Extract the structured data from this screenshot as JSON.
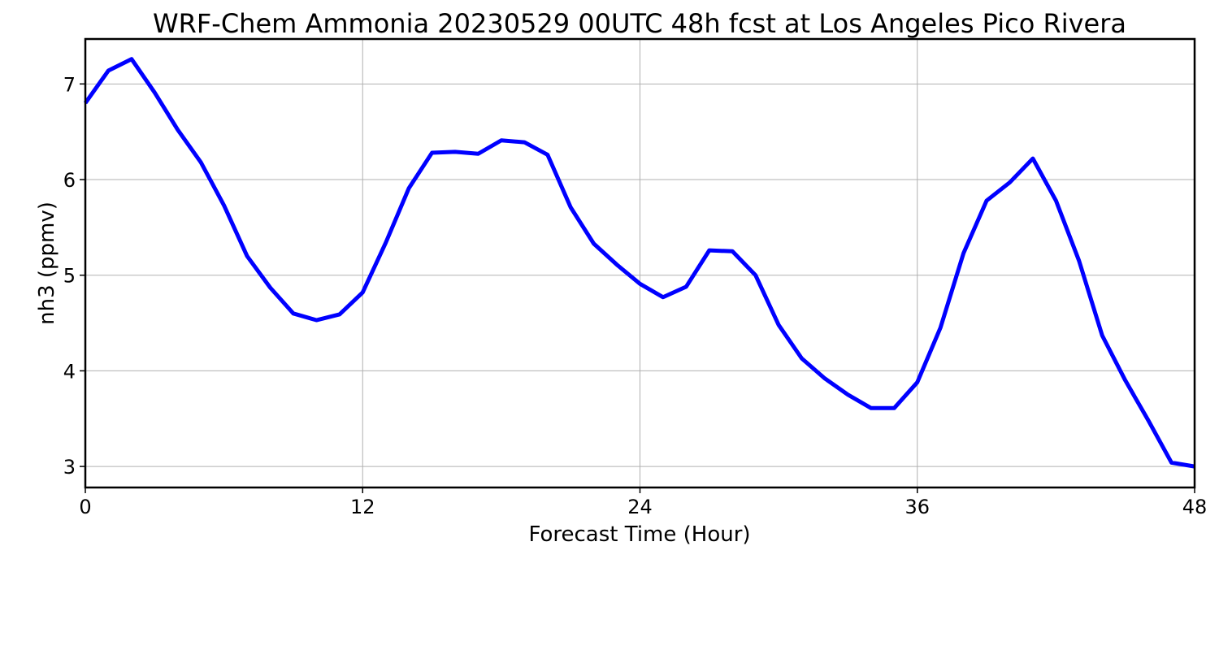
{
  "chart_data": {
    "type": "line",
    "title": "WRF-Chem Ammonia  20230529 00UTC 48h fcst at Los Angeles Pico Rivera",
    "xlabel": "Forecast Time (Hour)",
    "ylabel": "nh3  (ppmv)",
    "xlim": [
      0,
      48
    ],
    "ylim": [
      2.78,
      7.47
    ],
    "xticks": [
      0,
      12,
      24,
      36,
      48
    ],
    "yticks": [
      3,
      4,
      5,
      6,
      7
    ],
    "grid": true,
    "colors": {
      "line": "#0000ff",
      "grid": "#b0b0b0",
      "frame": "#000000"
    },
    "series": [
      {
        "x": [
          0,
          1,
          2,
          3,
          4,
          5,
          6,
          7,
          8,
          9,
          10,
          11,
          12,
          13,
          14,
          15,
          16,
          17,
          18,
          19,
          20,
          21,
          22,
          23,
          24,
          25,
          26,
          27,
          28,
          29,
          30,
          31,
          32,
          33,
          34,
          35,
          36,
          37,
          38,
          39,
          40,
          41,
          42,
          43,
          44,
          45,
          46,
          47,
          48
        ],
        "values": [
          6.8,
          7.14,
          7.26,
          6.91,
          6.52,
          6.18,
          5.73,
          5.2,
          4.87,
          4.6,
          4.53,
          4.59,
          4.82,
          5.34,
          5.91,
          6.28,
          6.29,
          6.27,
          6.41,
          6.39,
          6.26,
          5.71,
          5.33,
          5.11,
          4.91,
          4.77,
          4.88,
          5.26,
          5.25,
          5.0,
          4.48,
          4.13,
          3.92,
          3.75,
          3.61,
          3.61,
          3.88,
          4.45,
          5.23,
          5.78,
          5.97,
          6.22,
          5.78,
          5.15,
          4.37,
          3.9,
          3.48,
          3.04,
          3.0
        ]
      }
    ]
  }
}
